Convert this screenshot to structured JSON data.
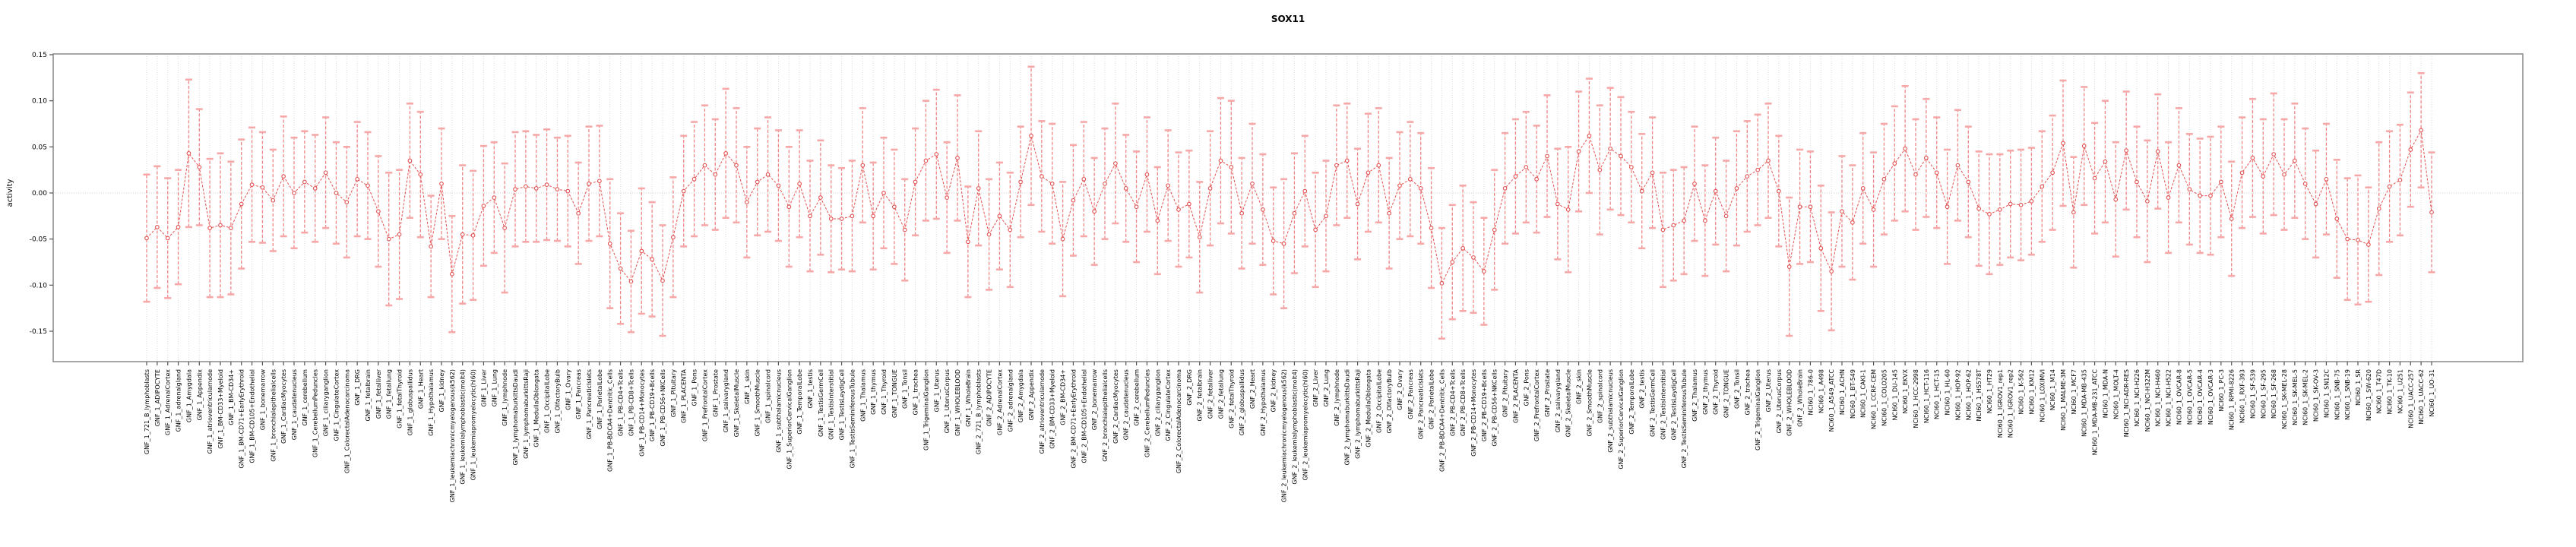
{
  "title": "SOX11",
  "colors": {
    "line": "#e25050",
    "marker_stroke": "#e25050",
    "error_bar": "#ef8585",
    "error_cap": "#f6a8a8",
    "grid": "#d9d9d9",
    "zero_line": "#cfcfcf",
    "box": "#909090",
    "tick": "#555555",
    "text": "#000000"
  },
  "chart_data": {
    "type": "line",
    "title": "SOX11",
    "xlabel": "",
    "ylabel": "activity",
    "ylim": [
      -0.15,
      0.15
    ],
    "y_ticks": [
      0.15,
      0.1,
      0.05,
      0.0,
      -0.05,
      -0.1,
      -0.15
    ],
    "grid": "vertical dotted gridline at every category; dotted horizontal line at y=0",
    "legend_position": "none",
    "marker": "open-circle",
    "line_style": "dashed",
    "error_bars": true,
    "categories": [
      "GNF_1_721_B_lymphoblasts",
      "GNF_1_ADIPOCYTE",
      "GNF_1_AdrenalCortex",
      "GNF_1_adrenalgland",
      "GNF_1_Amygdala",
      "GNF_1_Appendix",
      "GNF_1_atrioventricularnode",
      "GNF_1_BM-CD33+Myeloid",
      "GNF_1_BM-CD34+",
      "GNF_1_BM-CD71+EarlyErythroid",
      "GNF_1_BM-CD105+Endothelial",
      "GNF_1_bonemarrow",
      "GNF_1_bronchialepithelialcells",
      "GNF_1_CardiacMyocytes",
      "GNF_1_caudatenucleus",
      "GNF_1_cerebellum",
      "GNF_1_CerebellumPeduncles",
      "GNF_1_ciliaryganglion",
      "GNF_1_CingulateCortex",
      "GNF_1_ColorectalAdenocarcinoma",
      "GNF_1_DRG",
      "GNF_1_fetalbrain",
      "GNF_1_fetalliver",
      "GNF_1_fetallung",
      "GNF_1_fetalThyroid",
      "GNF_1_globuspallidus",
      "GNF_1_Heart",
      "GNF_1_Hypothalamus",
      "GNF_1_kidney",
      "GNF_1_leukemiachronicmyelogenous(k562)",
      "GNF_1_leukemialymphoblastic(molt4)",
      "GNF_1_leukemiapromyelocytic(hl60)",
      "GNF_1_Liver",
      "GNF_1_Lung",
      "GNF_1_lymphnode",
      "GNF_1_lymphomaburkittsDaudi",
      "GNF_1_lymphomaburkittsRaji",
      "GNF_1_MedullaOblongata",
      "GNF_1_OccipitalLobe",
      "GNF_1_OlfactoryBulb",
      "GNF_1_Ovary",
      "GNF_1_Pancreas",
      "GNF_1_PancreaticIslets",
      "GNF_1_ParietalLobe",
      "GNF_1_PB-BDCA4+Dentritic_Cells",
      "GNF_1_PB-CD4+Tcells",
      "GNF_1_PB-CD8+Tcells",
      "GNF_1_PB-CD14+Monocytes",
      "GNF_1_PB-CD19+Bcells",
      "GNF_1_PB-CD56+NKCells",
      "GNF_1_Pituitary",
      "GNF_1_PLACENTA",
      "GNF_1_Pons",
      "GNF_1_PrefrontalCortex",
      "GNF_1_Prostate",
      "GNF_1_salivarygland",
      "GNF_1_SkeletalMuscle",
      "GNF_1_skin",
      "GNF_1_SmoothMuscle",
      "GNF_1_spinalcord",
      "GNF_1_subthalamicnucleus",
      "GNF_1_SuperiorCervicalGanglion",
      "GNF_1_TemporalLobe",
      "GNF_1_testis",
      "GNF_1_TestisGermCell",
      "GNF_1_TestisInterstitial",
      "GNF_1_TestisLeydigCell",
      "GNF_1_TestisSeminiferousTubule",
      "GNF_1_Thalamus",
      "GNF_1_thymus",
      "GNF_1_Thyroid",
      "GNF_1_TONGUE",
      "GNF_1_Tonsil",
      "GNF_1_trachea",
      "GNF_1_TrigeminalGanglion",
      "GNF_1_Uterus",
      "GNF_1_UterusCorpus",
      "GNF_1_WHOLEBLOOD",
      "GNF_1_WholeBrain",
      "GNF_2_721_B_lymphoblasts",
      "GNF_2_ADIPOCYTE",
      "GNF_2_AdrenalCortex",
      "GNF_2_adrenalgland",
      "GNF_2_Amygdala",
      "GNF_2_Appendix",
      "GNF_2_atrioventricularnode",
      "GNF_2_BM-CD33+Myeloid",
      "GNF_2_BM-CD34+",
      "GNF_2_BM-CD71+EarlyErythroid",
      "GNF_2_BM-CD105+Endothelial",
      "GNF_2_bonemarrow",
      "GNF_2_bronchialepithelialcells",
      "GNF_2_CardiacMyocytes",
      "GNF_2_caudatenucleus",
      "GNF_2_cerebellum",
      "GNF_2_CerebellumPeduncles",
      "GNF_2_ciliaryganglion",
      "GNF_2_CingulateCortex",
      "GNF_2_ColorectalAdenocarcinoma",
      "GNF_2_DRG",
      "GNF_2_fetalbrain",
      "GNF_2_fetalliver",
      "GNF_2_fetallung",
      "GNF_2_fetalThyroid",
      "GNF_2_globuspallidus",
      "GNF_2_Heart",
      "GNF_2_Hypothalamus",
      "GNF_2_kidney",
      "GNF_2_leukemiachronicmyelogenous(k562)",
      "GNF_2_leukemialymphoblastic(molt4)",
      "GNF_2_leukemiapromyelocytic(hl60)",
      "GNF_2_Liver",
      "GNF_2_Lung",
      "GNF_2_lymphnode",
      "GNF_2_lymphomaburkittsDaudi",
      "GNF_2_lymphomaburkittsRaji",
      "GNF_2_MedullaOblongata",
      "GNF_2_OccipitalLobe",
      "GNF_2_OlfactoryBulb",
      "GNF_2_Ovary",
      "GNF_2_Pancreas",
      "GNF_2_PancreaticIslets",
      "GNF_2_ParietalLobe",
      "GNF_2_PB-BDCA4+Dentritic_Cells",
      "GNF_2_PB-CD4+Tcells",
      "GNF_2_PB-CD8+Tcells",
      "GNF_2_PB-CD14+Monocytes",
      "GNF_2_PB-CD19+Bcells",
      "GNF_2_PB-CD56+NKCells",
      "GNF_2_Pituitary",
      "GNF_2_PLACENTA",
      "GNF_2_Pons",
      "GNF_2_PrefrontalCortex",
      "GNF_2_Prostate",
      "GNF_2_salivarygland",
      "GNF_2_SkeletalMuscle",
      "GNF_2_skin",
      "GNF_2_SmoothMuscle",
      "GNF_2_spinalcord",
      "GNF_2_subthalamicnucleus",
      "GNF_2_SuperiorCervicalGanglion",
      "GNF_2_TemporalLobe",
      "GNF_2_testis",
      "GNF_2_TestisGermCell",
      "GNF_2_TestisInterstitial",
      "GNF_2_TestisLeydigCell",
      "GNF_2_TestisSeminiferousTubule",
      "GNF_2_Thalamus",
      "GNF_2_thymus",
      "GNF_2_Thyroid",
      "GNF_2_TONGUE",
      "GNF_2_Tonsil",
      "GNF_2_trachea",
      "GNF_2_TrigeminalGanglion",
      "GNF_2_Uterus",
      "GNF_2_UterusCorpus",
      "GNF_2_WHOLEBLOOD",
      "GNF_2_WholeBrain",
      "NCI60_1_786-0",
      "NCI60_1_A498",
      "NCI60_1_A549_ATCC",
      "NCI60_1_ACHN",
      "NCI60_1_BT-549",
      "NCI60_1_CAKI-1",
      "NCI60_1_CCRF-CEM",
      "NCI60_1_COLO205",
      "NCI60_1_DU-145",
      "NCI60_1_EKVX",
      "NCI60_1_HCC-2998",
      "NCI60_1_HCT-116",
      "NCI60_1_HCT-15",
      "NCI60_1_HL-60",
      "NCI60_1_HOP-92",
      "NCI60_1_HOP-62",
      "NCI60_1_HS578T",
      "NCI60_1_HT29",
      "NCI60_1_IGROV1_rep1",
      "NCI60_1_IGROV1_rep2",
      "NCI60_1_K-562",
      "NCI60_1_KM12",
      "NCI60_1_LOXIMVI",
      "NCI60_1_M14",
      "NCI60_1_MALME-3M",
      "NCI60_1_MCF7",
      "NCI60_1_MDA-MB-435",
      "NCI60_1_MDA-MB-231_ATCC",
      "NCI60_1_MDA-N",
      "NCI60_1_MOLT-4",
      "NCI60_1_NCI-ADR-RES",
      "NCI60_1_NCI-H226",
      "NCI60_1_NCI-H322M",
      "NCI60_1_NCI-H460",
      "NCI60_1_NCI-H522",
      "NCI60_1_OVCAR-8",
      "NCI60_1_OVCAR-5",
      "NCI60_1_OVCAR-4",
      "NCI60_1_OVCAR-3",
      "NCI60_1_PC-3",
      "NCI60_1_RPMI-8226",
      "NCI60_1_RXF-393",
      "NCI60_1_SF-539",
      "NCI60_1_SF-295",
      "NCI60_1_SF-268",
      "NCI60_1_SK-MEL-28",
      "NCI60_1_SK-MEL-5",
      "NCI60_1_SK-MEL-2",
      "NCI60_1_SK-OV-3",
      "NCI60_1_SN12C",
      "NCI60_1_SNB-75",
      "NCI60_1_SNB-19",
      "NCI60_1_SR",
      "NCI60_1_SW-620",
      "NCI60_1_T47D",
      "NCI60_1_TK-10",
      "NCI60_1_U251",
      "NCI60_1_UACC-257",
      "NCI60_1_UACC-62",
      "NCI60_1_UO-31"
    ],
    "values": [
      -0.049,
      -0.037,
      -0.049,
      -0.037,
      0.043,
      0.028,
      -0.038,
      -0.035,
      -0.038,
      -0.012,
      0.009,
      0.006,
      -0.008,
      0.018,
      0.0,
      0.012,
      0.005,
      0.022,
      0.0,
      -0.01,
      0.015,
      0.008,
      -0.02,
      -0.05,
      -0.045,
      0.035,
      0.02,
      -0.058,
      0.01,
      -0.088,
      -0.045,
      -0.046,
      -0.014,
      -0.005,
      -0.038,
      0.004,
      0.007,
      0.005,
      0.009,
      0.004,
      0.002,
      -0.022,
      0.01,
      0.013,
      -0.055,
      -0.082,
      -0.096,
      -0.063,
      -0.072,
      -0.095,
      -0.048,
      0.002,
      0.015,
      0.03,
      0.02,
      0.043,
      0.03,
      -0.01,
      0.012,
      0.02,
      0.008,
      -0.015,
      0.01,
      -0.025,
      -0.005,
      -0.028,
      -0.028,
      -0.025,
      0.03,
      -0.025,
      0.0,
      -0.015,
      -0.04,
      0.012,
      0.035,
      0.042,
      -0.005,
      0.038,
      -0.053,
      0.005,
      -0.045,
      -0.025,
      -0.04,
      0.012,
      0.062,
      0.018,
      0.01,
      -0.05,
      -0.008,
      0.015,
      -0.02,
      0.01,
      0.032,
      0.005,
      -0.015,
      0.02,
      -0.03,
      0.008,
      -0.018,
      -0.012,
      -0.048,
      0.005,
      0.035,
      0.028,
      -0.022,
      0.01,
      -0.018,
      -0.052,
      -0.055,
      -0.022,
      0.002,
      -0.04,
      -0.025,
      0.03,
      0.035,
      -0.012,
      0.022,
      0.03,
      -0.022,
      0.008,
      0.015,
      0.005,
      -0.038,
      -0.098,
      -0.075,
      -0.06,
      -0.07,
      -0.085,
      -0.04,
      0.005,
      0.018,
      0.028,
      0.015,
      0.04,
      -0.012,
      -0.018,
      0.045,
      0.062,
      0.025,
      0.048,
      0.04,
      0.028,
      0.002,
      0.022,
      -0.04,
      -0.035,
      -0.03,
      0.01,
      -0.03,
      0.002,
      -0.025,
      0.005,
      0.018,
      0.025,
      0.035,
      0.002,
      -0.08,
      -0.015,
      -0.015,
      -0.06,
      -0.085,
      -0.02,
      -0.032,
      0.005,
      -0.018,
      0.015,
      0.032,
      0.048,
      0.02,
      0.038,
      0.022,
      -0.015,
      0.03,
      0.012,
      -0.017,
      -0.023,
      -0.018,
      -0.012,
      -0.013,
      -0.009,
      0.007,
      0.022,
      0.054,
      -0.021,
      0.051,
      0.016,
      0.034,
      -0.007,
      0.046,
      0.012,
      -0.009,
      0.045,
      -0.005,
      0.03,
      0.004,
      -0.003,
      -0.003,
      0.012,
      -0.028,
      0.022,
      0.038,
      0.018,
      0.042,
      0.02,
      0.035,
      0.01,
      -0.012,
      0.015,
      -0.028,
      -0.05,
      -0.051,
      -0.056,
      -0.017,
      0.007,
      0.014,
      0.047,
      0.068,
      -0.021
    ],
    "errors": [
      0.069,
      0.066,
      0.065,
      0.062,
      0.08,
      0.063,
      0.075,
      0.078,
      0.072,
      0.07,
      0.062,
      0.06,
      0.055,
      0.065,
      0.06,
      0.055,
      0.058,
      0.06,
      0.055,
      0.06,
      0.062,
      0.058,
      0.06,
      0.072,
      0.07,
      0.062,
      0.068,
      0.055,
      0.06,
      0.063,
      0.075,
      0.07,
      0.065,
      0.06,
      0.07,
      0.062,
      0.06,
      0.058,
      0.06,
      0.056,
      0.06,
      0.055,
      0.062,
      0.06,
      0.07,
      0.06,
      0.055,
      0.068,
      0.062,
      0.06,
      0.065,
      0.06,
      0.062,
      0.065,
      0.06,
      0.07,
      0.062,
      0.06,
      0.058,
      0.062,
      0.06,
      0.065,
      0.058,
      0.06,
      0.062,
      0.058,
      0.055,
      0.06,
      0.062,
      0.058,
      0.06,
      0.062,
      0.055,
      0.058,
      0.065,
      0.07,
      0.06,
      0.068,
      0.06,
      0.062,
      0.06,
      0.058,
      0.062,
      0.06,
      0.075,
      0.06,
      0.065,
      0.062,
      0.06,
      0.062,
      0.058,
      0.06,
      0.065,
      0.058,
      0.06,
      0.062,
      0.058,
      0.06,
      0.062,
      0.058,
      0.06,
      0.062,
      0.068,
      0.072,
      0.06,
      0.065,
      0.06,
      0.058,
      0.07,
      0.065,
      0.06,
      0.062,
      0.06,
      0.065,
      0.062,
      0.06,
      0.064,
      0.062,
      0.06,
      0.058,
      0.062,
      0.06,
      0.065,
      0.06,
      0.062,
      0.068,
      0.06,
      0.058,
      0.065,
      0.06,
      0.062,
      0.06,
      0.058,
      0.066,
      0.06,
      0.068,
      0.065,
      0.062,
      0.07,
      0.066,
      0.064,
      0.06,
      0.062,
      0.06,
      0.062,
      0.06,
      0.058,
      0.062,
      0.06,
      0.058,
      0.06,
      0.062,
      0.06,
      0.06,
      0.062,
      0.06,
      0.075,
      0.062,
      0.06,
      0.068,
      0.064,
      0.06,
      0.062,
      0.06,
      0.062,
      0.06,
      0.062,
      0.068,
      0.06,
      0.064,
      0.06,
      0.062,
      0.06,
      0.06,
      0.062,
      0.065,
      0.06,
      0.058,
      0.06,
      0.058,
      0.06,
      0.062,
      0.068,
      0.06,
      0.064,
      0.06,
      0.066,
      0.062,
      0.064,
      0.06,
      0.066,
      0.062,
      0.06,
      0.062,
      0.06,
      0.062,
      0.064,
      0.06,
      0.062,
      0.06,
      0.064,
      0.062,
      0.066,
      0.06,
      0.062,
      0.06,
      0.058,
      0.06,
      0.064,
      0.066,
      0.07,
      0.062,
      0.072,
      0.06,
      0.06,
      0.062,
      0.062,
      0.065
    ]
  }
}
